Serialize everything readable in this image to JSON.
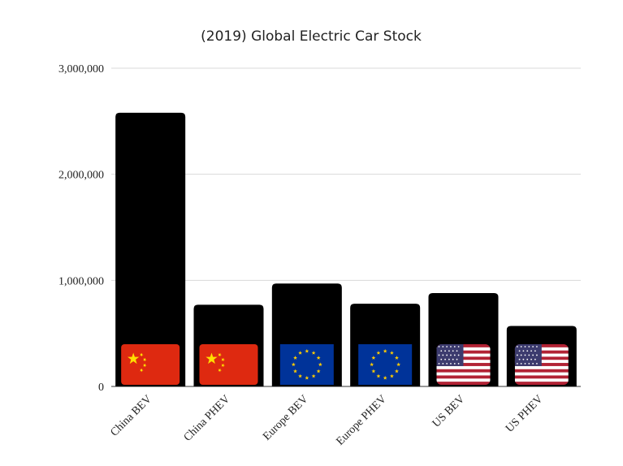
{
  "chart_data": {
    "type": "bar",
    "title": "(2019) Global Electric Car Stock",
    "xlabel": "",
    "ylabel": "",
    "categories": [
      "China BEV",
      "China PHEV",
      "Europe BEV",
      "Europe PHEV",
      "US BEV",
      "US PHEV"
    ],
    "values": [
      2580000,
      770000,
      970000,
      780000,
      880000,
      570000
    ],
    "ylim": [
      0,
      3000000
    ],
    "yticks": [
      "0",
      "1,000,000",
      "2,000,000",
      "3,000,000"
    ],
    "ytick_values": [
      0,
      1000000,
      2000000,
      3000000
    ],
    "grid": true,
    "legend": "none",
    "bar_color": "#000000",
    "flags": [
      "china-flag",
      "china-flag",
      "eu-flag",
      "eu-flag",
      "us-flag",
      "us-flag"
    ],
    "colors": {
      "china_red": "#de2910",
      "china_star": "#ffde00",
      "eu_blue": "#003399",
      "eu_star": "#ffcc00",
      "us_red": "#b22234",
      "us_blue": "#3c3b6e",
      "us_white": "#ffffff"
    }
  }
}
